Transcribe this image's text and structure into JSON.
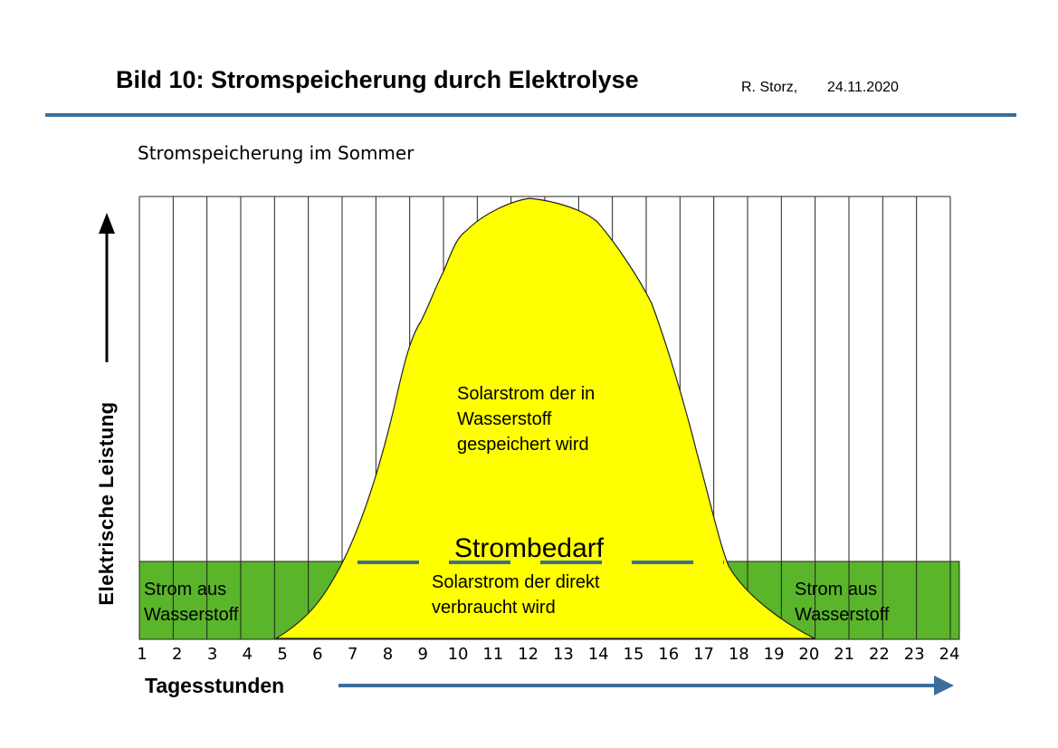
{
  "header": {
    "title": "Bild 10:  Stromspeicherung durch Elektrolyse",
    "author": "R. Storz,",
    "date": "24.11.2020"
  },
  "figure": {
    "subtitle": "Stromspeicherung im Sommer",
    "y_axis_label": "Elektrische Leistung",
    "x_axis_label": "Tagesstunden",
    "hours": [
      "1",
      "2",
      "3",
      "4",
      "5",
      "6",
      "7",
      "8",
      "9",
      "10",
      "11",
      "12",
      "13",
      "14",
      "15",
      "16",
      "17",
      "18",
      "19",
      "20",
      "21",
      "22",
      "23",
      "24"
    ],
    "labels": {
      "stored_solar": [
        "Solarstrom der in",
        "Wasserstoff",
        "gespeichert wird"
      ],
      "demand": "Strombedarf",
      "direct_solar": [
        "Solarstrom der direkt",
        "verbraucht  wird"
      ],
      "hydrogen_left": [
        "Strom aus",
        "Wasserstoff"
      ],
      "hydrogen_right": [
        "Strom aus",
        "Wasserstoff"
      ]
    },
    "colors": {
      "solar": "#ffff00",
      "hydrogen": "#5ab52a",
      "arrow": "#3b6e9a",
      "demand_line": "#3b6e9a"
    }
  }
}
